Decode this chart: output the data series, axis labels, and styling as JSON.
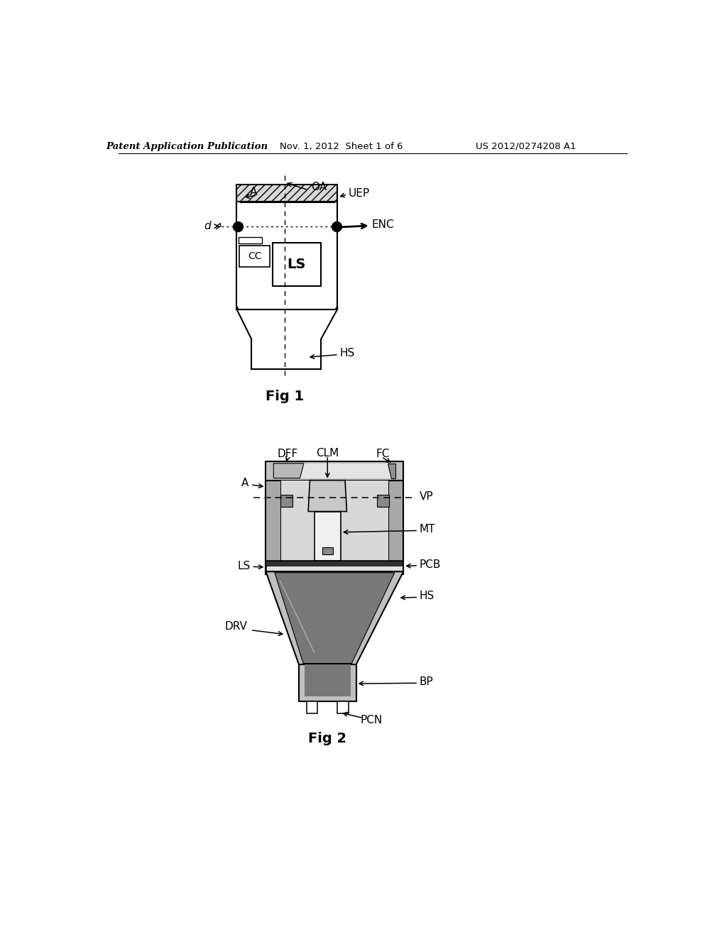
{
  "header_left": "Patent Application Publication",
  "header_mid": "Nov. 1, 2012  Sheet 1 of 6",
  "header_right": "US 2012/0274208 A1",
  "fig1_label": "Fig 1",
  "fig2_label": "Fig 2",
  "bg_color": "#ffffff",
  "lc": "#000000",
  "gray1": "#d0d0d0",
  "gray2": "#b0b0b0",
  "gray3": "#909090",
  "gray4": "#606060",
  "gray5": "#e8e8e8"
}
